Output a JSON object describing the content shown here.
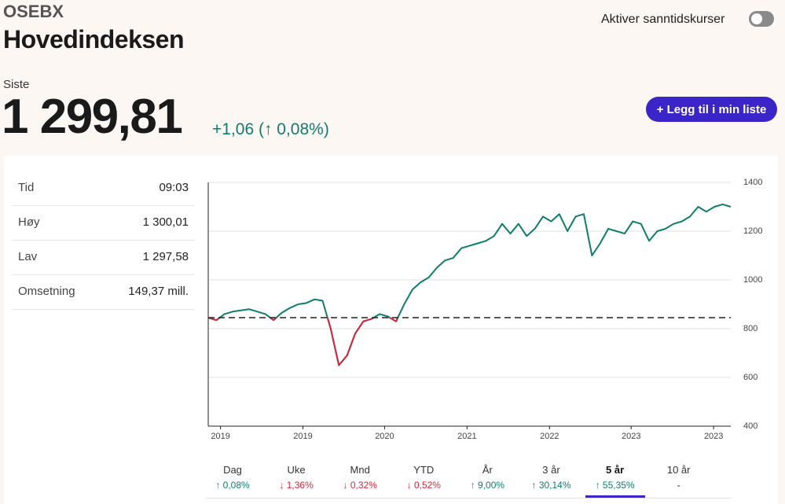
{
  "header": {
    "ticker": "OSEBX",
    "title": "Hovedindeksen",
    "toggle_label": "Aktiver sanntidskurser"
  },
  "quote": {
    "label": "Siste",
    "price": "1 299,81",
    "change": "+1,06 (↑ 0,08%)",
    "button": "+ Legg til i min liste"
  },
  "stats": [
    {
      "label": "Tid",
      "value": "09:03"
    },
    {
      "label": "Høy",
      "value": "1 300,01"
    },
    {
      "label": "Lav",
      "value": "1 297,58"
    },
    {
      "label": "Omsetning",
      "value": "149,37 mill."
    }
  ],
  "chart_data": {
    "type": "line",
    "x": [
      0,
      1,
      2,
      3,
      4,
      5,
      6,
      7,
      8,
      9,
      10,
      11,
      12,
      13,
      14,
      15,
      16,
      17,
      18,
      19,
      20,
      21,
      22,
      23,
      24,
      25,
      26,
      27,
      28,
      29,
      30,
      31,
      32,
      33,
      34,
      35,
      36,
      37,
      38,
      39,
      40,
      41,
      42,
      43,
      44,
      45,
      46,
      47,
      48,
      49,
      50,
      51,
      52,
      53,
      54,
      55,
      56,
      57,
      58,
      59,
      60,
      61,
      62,
      63,
      64
    ],
    "series": [
      {
        "name": "OSEBX",
        "color": "#0e7d6b",
        "below_color": "#d3263b",
        "values": [
          845,
          835,
          860,
          870,
          875,
          880,
          870,
          860,
          835,
          865,
          885,
          900,
          905,
          920,
          915,
          800,
          650,
          690,
          780,
          830,
          840,
          860,
          850,
          830,
          900,
          960,
          990,
          1010,
          1050,
          1080,
          1090,
          1130,
          1140,
          1150,
          1160,
          1180,
          1230,
          1190,
          1230,
          1180,
          1210,
          1260,
          1240,
          1270,
          1200,
          1260,
          1270,
          1100,
          1150,
          1210,
          1200,
          1190,
          1240,
          1230,
          1160,
          1200,
          1210,
          1230,
          1240,
          1260,
          1300,
          1280,
          1300,
          1310,
          1300
        ]
      }
    ],
    "reference": 845,
    "xlim": [
      0,
      64
    ],
    "xticks": [
      {
        "value": 1.5,
        "label": "2019"
      },
      {
        "value": 11.6,
        "label": "2019"
      },
      {
        "value": 21.6,
        "label": "2020"
      },
      {
        "value": 31.7,
        "label": "2021"
      },
      {
        "value": 41.8,
        "label": "2022"
      },
      {
        "value": 51.8,
        "label": "2023"
      },
      {
        "value": 61.9,
        "label": "2023"
      }
    ],
    "ylim": [
      400,
      1400
    ],
    "yticks": [
      400,
      600,
      800,
      1000,
      1200,
      1400
    ],
    "grid": true
  },
  "periods": [
    {
      "label": "Dag",
      "change": "0,08%",
      "direction": "up"
    },
    {
      "label": "Uke",
      "change": "1,36%",
      "direction": "down"
    },
    {
      "label": "Mnd",
      "change": "0,32%",
      "direction": "down"
    },
    {
      "label": "YTD",
      "change": "0,52%",
      "direction": "down"
    },
    {
      "label": "År",
      "change": "9,00%",
      "direction": "up"
    },
    {
      "label": "3 år",
      "change": "30,14%",
      "direction": "up"
    },
    {
      "label": "5 år",
      "change": "55,35%",
      "direction": "up",
      "selected": true
    },
    {
      "label": "10 år",
      "change": "-"
    }
  ]
}
